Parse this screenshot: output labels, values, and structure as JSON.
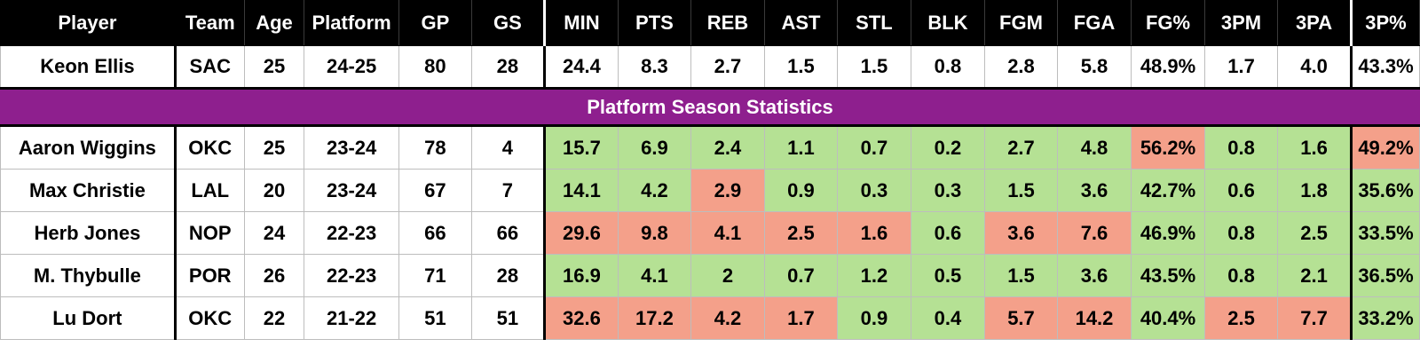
{
  "colors": {
    "header_bg": "#000000",
    "section_bg": "#8e1f8e",
    "good": "#b5e194",
    "bad": "#f4a08a"
  },
  "columns": [
    "Player",
    "Team",
    "Age",
    "Platform",
    "GP",
    "GS",
    "MIN",
    "PTS",
    "REB",
    "AST",
    "STL",
    "BLK",
    "FGM",
    "FGA",
    "FG%",
    "3PM",
    "3PA",
    "3P%"
  ],
  "target": {
    "cells": [
      "Keon Ellis",
      "SAC",
      "25",
      "24-25",
      "80",
      "28",
      "24.4",
      "8.3",
      "2.7",
      "1.5",
      "1.5",
      "0.8",
      "2.8",
      "5.8",
      "48.9%",
      "1.7",
      "4.0",
      "43.3%"
    ]
  },
  "section_title": "Platform Season Statistics",
  "comparables": [
    {
      "cells": [
        "Aaron Wiggins",
        "OKC",
        "25",
        "23-24",
        "78",
        "4",
        "15.7",
        "6.9",
        "2.4",
        "1.1",
        "0.7",
        "0.2",
        "2.7",
        "4.8",
        "56.2%",
        "0.8",
        "1.6",
        "49.2%"
      ],
      "flags": [
        "g",
        "g",
        "g",
        "g",
        "g",
        "g",
        "g",
        "g",
        "r",
        "g",
        "g",
        "r"
      ]
    },
    {
      "cells": [
        "Max Christie",
        "LAL",
        "20",
        "23-24",
        "67",
        "7",
        "14.1",
        "4.2",
        "2.9",
        "0.9",
        "0.3",
        "0.3",
        "1.5",
        "3.6",
        "42.7%",
        "0.6",
        "1.8",
        "35.6%"
      ],
      "flags": [
        "g",
        "g",
        "r",
        "g",
        "g",
        "g",
        "g",
        "g",
        "g",
        "g",
        "g",
        "g"
      ]
    },
    {
      "cells": [
        "Herb Jones",
        "NOP",
        "24",
        "22-23",
        "66",
        "66",
        "29.6",
        "9.8",
        "4.1",
        "2.5",
        "1.6",
        "0.6",
        "3.6",
        "7.6",
        "46.9%",
        "0.8",
        "2.5",
        "33.5%"
      ],
      "flags": [
        "r",
        "r",
        "r",
        "r",
        "r",
        "g",
        "r",
        "r",
        "g",
        "g",
        "g",
        "g"
      ]
    },
    {
      "cells": [
        "M. Thybulle",
        "POR",
        "26",
        "22-23",
        "71",
        "28",
        "16.9",
        "4.1",
        "2",
        "0.7",
        "1.2",
        "0.5",
        "1.5",
        "3.6",
        "43.5%",
        "0.8",
        "2.1",
        "36.5%"
      ],
      "flags": [
        "g",
        "g",
        "g",
        "g",
        "g",
        "g",
        "g",
        "g",
        "g",
        "g",
        "g",
        "g"
      ]
    },
    {
      "cells": [
        "Lu Dort",
        "OKC",
        "22",
        "21-22",
        "51",
        "51",
        "32.6",
        "17.2",
        "4.2",
        "1.7",
        "0.9",
        "0.4",
        "5.7",
        "14.2",
        "40.4%",
        "2.5",
        "7.7",
        "33.2%"
      ],
      "flags": [
        "r",
        "r",
        "r",
        "r",
        "g",
        "g",
        "r",
        "r",
        "g",
        "r",
        "r",
        "g"
      ]
    }
  ]
}
